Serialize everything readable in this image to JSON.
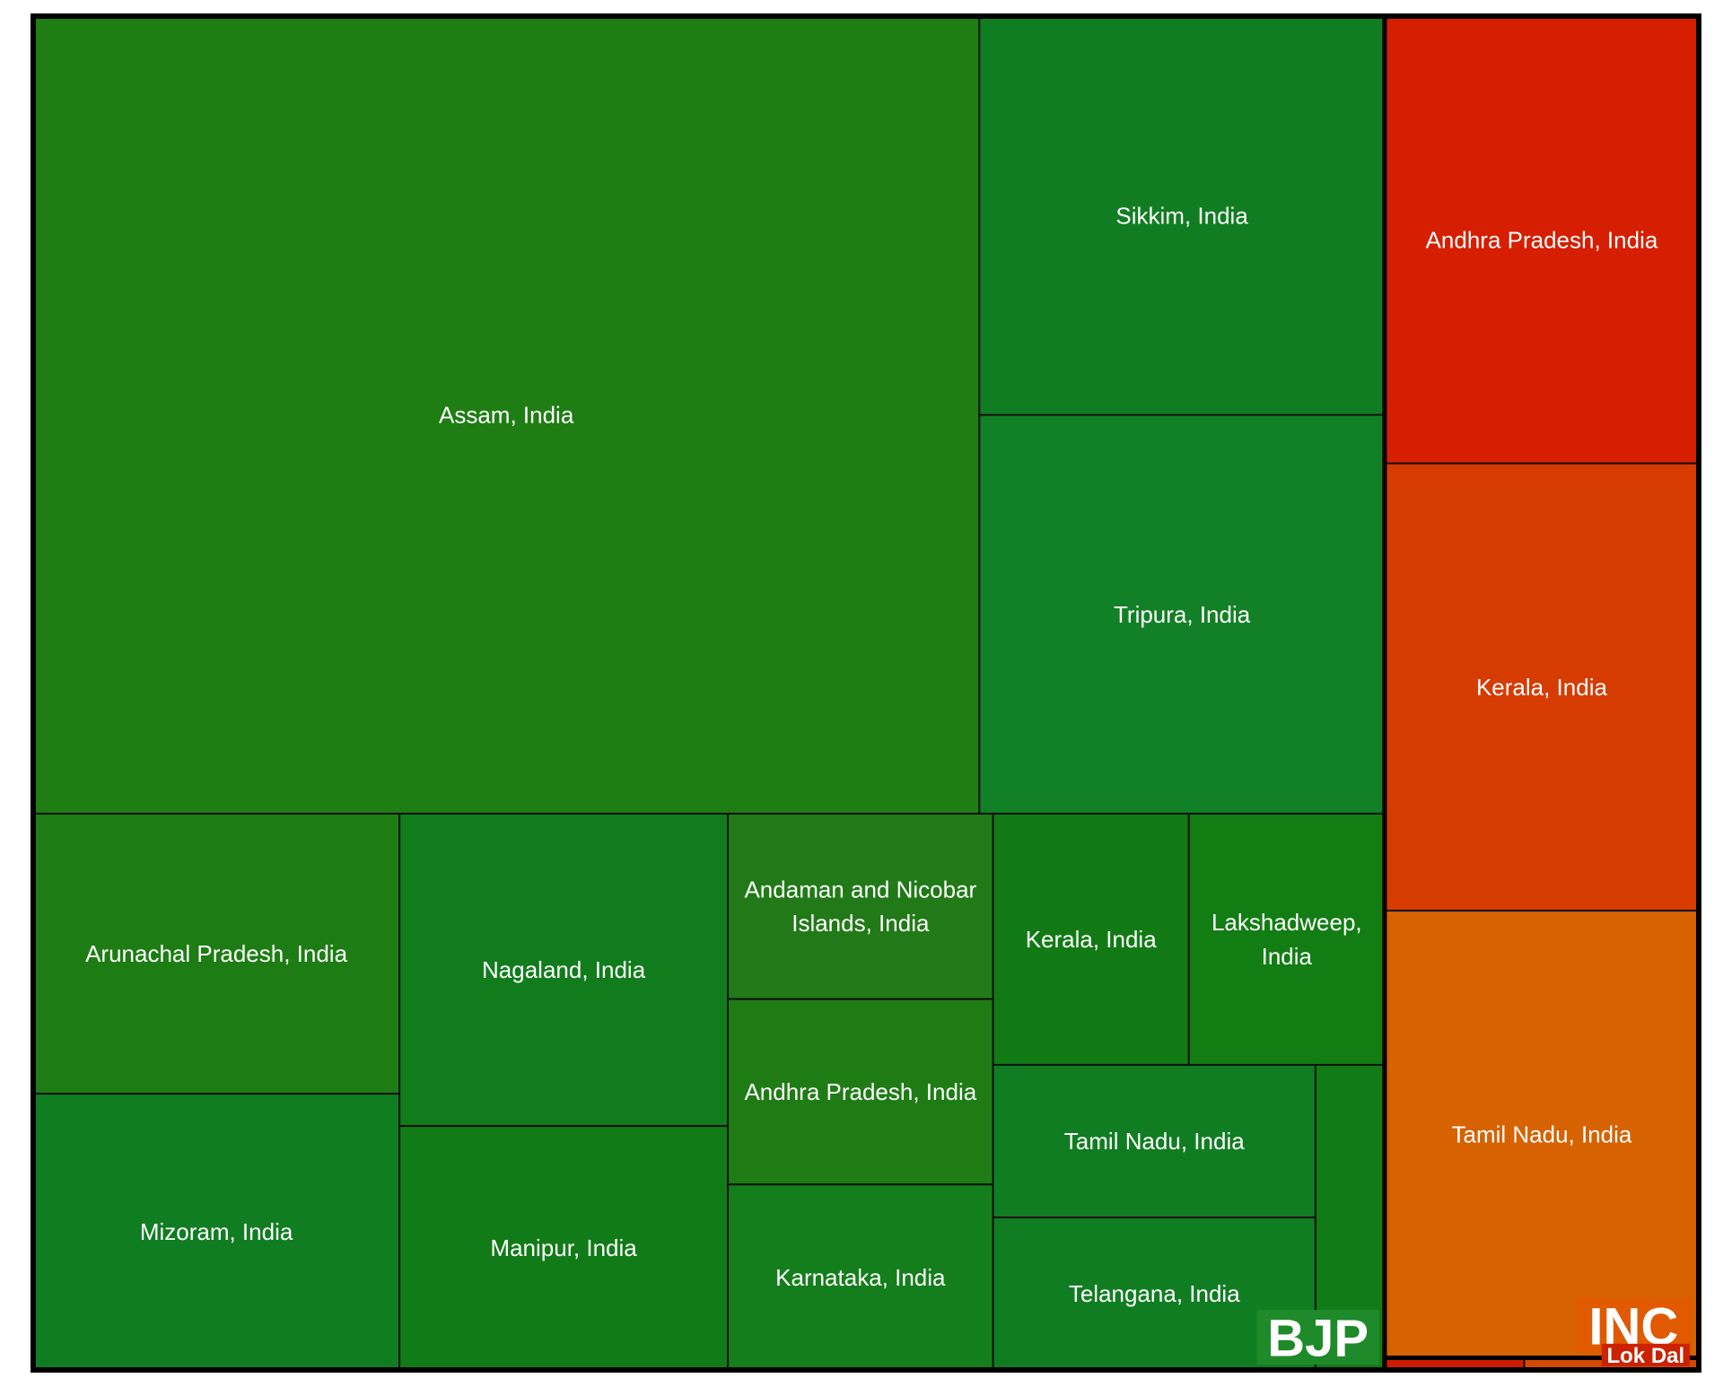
{
  "chart_data": {
    "type": "treemap",
    "title": "",
    "groups": [
      {
        "name": "BJP",
        "color": "#1f7a1f",
        "badge_color": "#1f8a2a",
        "children": [
          {
            "label": "Assam, India",
            "value": 537,
            "color": "#1e7e13"
          },
          {
            "label": "Sikkim, India",
            "value": 115,
            "color": "#117d22"
          },
          {
            "label": "Tripura, India",
            "value": 115,
            "color": "#128026"
          },
          {
            "label": "Arunachal Pradesh, India",
            "value": 73,
            "color": "#1d7d14"
          },
          {
            "label": "Mizoram, India",
            "value": 72,
            "color": "#117d22"
          },
          {
            "label": "Nagaland, India",
            "value": 73,
            "color": "#107c1c"
          },
          {
            "label": "Manipur, India",
            "value": 57,
            "color": "#117b18"
          },
          {
            "label": "Andaman and Nicobar Islands, India",
            "value": 35,
            "color": "#217a17"
          },
          {
            "label": "Andhra Pradesh, India",
            "value": 35,
            "color": "#1f7c15"
          },
          {
            "label": "Karnataka, India",
            "value": 35,
            "color": "#157e1c"
          },
          {
            "label": "Kerala, India",
            "value": 35,
            "color": "#117a14"
          },
          {
            "label": "Lakshadweep, India",
            "value": 35,
            "color": "#127d12"
          },
          {
            "label": "Tamil Nadu, India",
            "value": 35,
            "color": "#117d22"
          },
          {
            "label": "Telangana, India",
            "value": 35,
            "color": "#117d22"
          },
          {
            "label": "",
            "value": 15,
            "color": "#117b16"
          }
        ]
      },
      {
        "name": "INC",
        "color": "#d95200",
        "badge_color": "#e05a00",
        "children": [
          {
            "label": "Andhra Pradesh, India",
            "value": 100,
            "color": "#d61e00"
          },
          {
            "label": "Kerala, India",
            "value": 100,
            "color": "#d63b00"
          },
          {
            "label": "Tamil Nadu, India",
            "value": 100,
            "color": "#d66200"
          }
        ]
      },
      {
        "name": "Lok Dal",
        "color": "#cc1a00",
        "badge_color": "#cc2200",
        "children": [
          {
            "label": "",
            "value": 1.2,
            "color": "#d01a00"
          },
          {
            "label": "",
            "value": 1.5,
            "color": "#d34a00"
          }
        ]
      }
    ]
  }
}
